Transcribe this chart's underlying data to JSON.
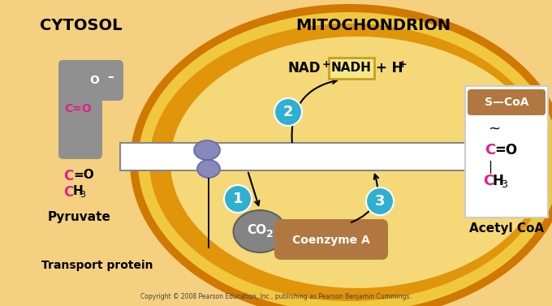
{
  "bg_cytosol": "#f5d080",
  "bg_mito_outer": "#e0950a",
  "bg_mito_inner": "#f0c840",
  "membrane_dark": "#d07800",
  "white": "#ffffff",
  "black": "#000000",
  "pink": "#e0208a",
  "gray_struct": "#909090",
  "gray_co2": "#848484",
  "purple_tp": "#8888bb",
  "teal_circle": "#30b0d0",
  "brown_coa": "#b07840",
  "nadh_bg": "#f5e888",
  "nadh_border": "#c8a020",
  "scoA_brown": "#b07840",
  "acetyl_bg": "#ffffff",
  "cytosol_label": "CYTOSOL",
  "mito_label": "MITOCHONDRION",
  "pyruvate_label": "Pyruvate",
  "transport_label": "Transport protein",
  "acetyl_label": "Acetyl CoA",
  "coenzyme_label": "Coenzyme A",
  "copyright": "Copyright © 2008 Pearson Education, Inc., publishing as Pearson Benjamin Cummings."
}
